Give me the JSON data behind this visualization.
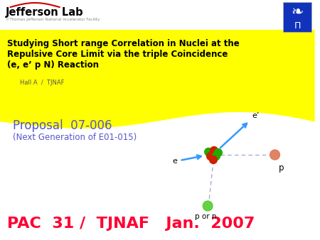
{
  "title_line1": "Studying Short range Correlation in Nuclei at the",
  "title_line2": "Repulsive Core Limit via the triple Coincidence",
  "title_line3": "(e, e’ p N) Reaction",
  "subtitle": "Hall A  /  TJNAF",
  "proposal": "Proposal  07-006",
  "next_gen": "(Next Generation of E01-015)",
  "footer": "PAC  31 /  TJNAF   Jan.  2007",
  "jlab_name": "Jefferson Lab",
  "jlab_sub": "©Thomas Jefferson National Accelerator Facility",
  "label_e": "e",
  "label_eprime": "e’",
  "label_p": "p",
  "label_porn": "p or n",
  "bg_color": "#ffffff",
  "yellow_color": "#ffff00",
  "title_text_color": "#000000",
  "proposal_color": "#5555cc",
  "footer_color": "#ff0033",
  "subtitle_color": "#555555",
  "jlab_red": "#cc0000",
  "arrow_blue": "#3399ff",
  "nucleus_red": "#cc2200",
  "nucleus_green": "#22aa00",
  "proton_color": "#dd7755",
  "neutron_color": "#55cc33"
}
